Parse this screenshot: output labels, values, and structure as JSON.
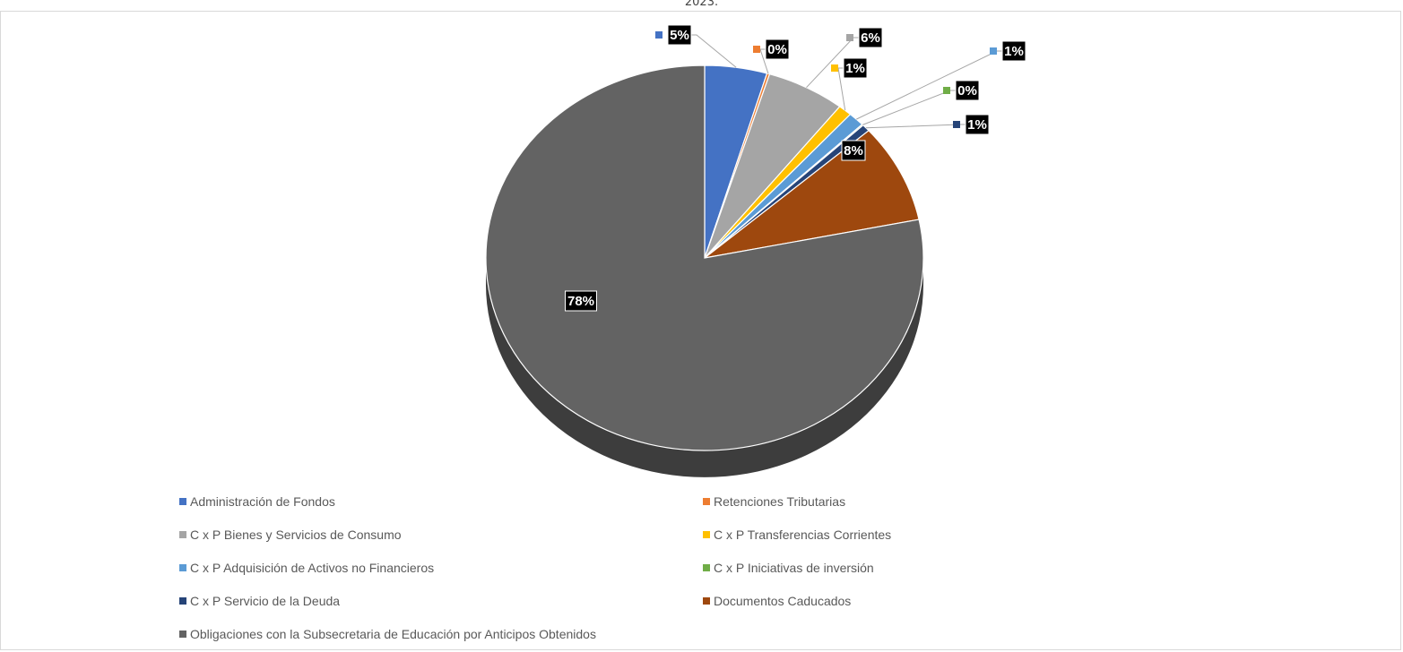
{
  "chart_data": {
    "type": "pie",
    "title": "2023.",
    "legend_position": "bottom",
    "slices": [
      {
        "name": "Administración de Fondos",
        "value": 4.6,
        "label": "5%",
        "color": "#4472C4"
      },
      {
        "name": "Retenciones Tributarias",
        "value": 0.2,
        "label": "0%",
        "color": "#ED7D31"
      },
      {
        "name": "C x P Bienes y Servicios de Consumo",
        "value": 5.8,
        "label": "6%",
        "color": "#A5A5A5"
      },
      {
        "name": "C x P Transferencias Corrientes",
        "value": 1.0,
        "label": "1%",
        "color": "#FFC000"
      },
      {
        "name": "C x P Adquisición de Activos no Financieros",
        "value": 1.2,
        "label": "1%",
        "color": "#5B9BD5"
      },
      {
        "name": "C x P Iniciativas de inversión",
        "value": 0.1,
        "label": "0%",
        "color": "#70AD47"
      },
      {
        "name": "C x P Servicio de la Deuda",
        "value": 0.6,
        "label": "1%",
        "color": "#264478"
      },
      {
        "name": "Documentos Caducados",
        "value": 8.3,
        "label": "8%",
        "color": "#9E480E"
      },
      {
        "name": "Obligaciones con la Subsecretaría de Educación por Anticipos Obtenidos",
        "value": 78.2,
        "label": "78%",
        "color": "#636363"
      }
    ]
  },
  "legend": {
    "items": [
      {
        "label": "Administración de Fondos",
        "color": "#4472C4"
      },
      {
        "label": "Retenciones Tributarias",
        "color": "#ED7D31"
      },
      {
        "label": "C x P Bienes y Servicios de Consumo",
        "color": "#A5A5A5"
      },
      {
        "label": "C x P Transferencias Corrientes",
        "color": "#FFC000"
      },
      {
        "label": "C x P Adquisición de Activos no Financieros",
        "color": "#5B9BD5"
      },
      {
        "label": "C x P Iniciativas de inversión",
        "color": "#70AD47"
      },
      {
        "label": "C x P Servicio de la Deuda",
        "color": "#264478"
      },
      {
        "label": "Documentos Caducados",
        "color": "#9E480E"
      },
      {
        "label": "Obligaciones con la Subsecretaria de Educación por Anticipos Obtenidos",
        "color": "#636363"
      }
    ]
  }
}
